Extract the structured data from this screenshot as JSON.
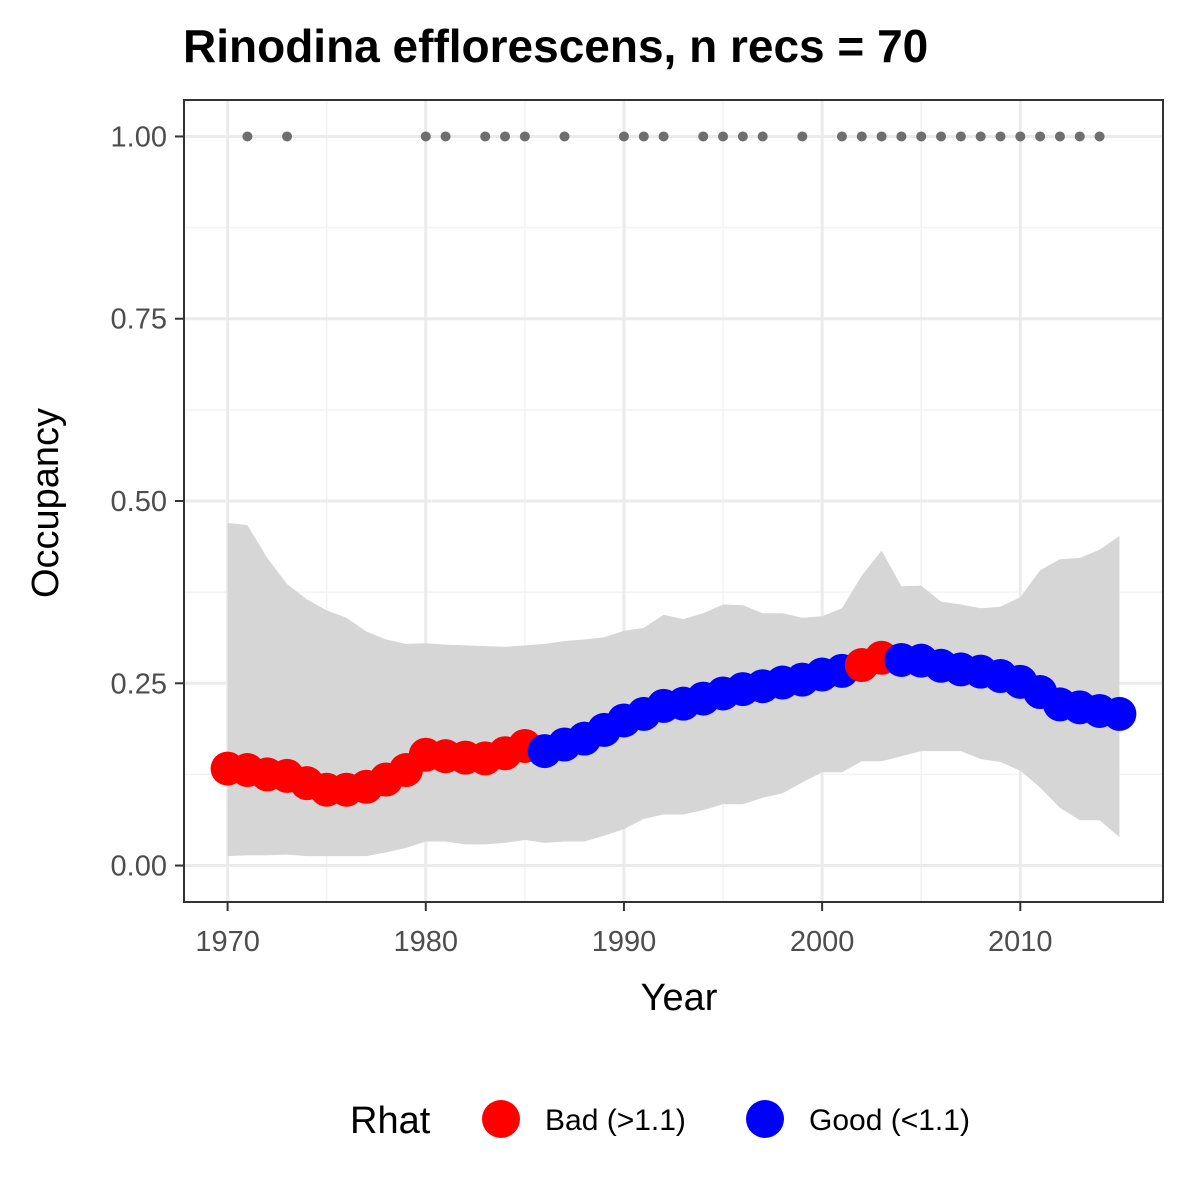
{
  "chart_data": {
    "type": "line",
    "title": "Rinodina efflorescens, n recs = 70",
    "xlabel": "Year",
    "ylabel": "Occupancy",
    "xlim": [
      1967.8,
      2017.2
    ],
    "ylim": [
      -0.05,
      1.05
    ],
    "x_ticks": [
      1970,
      1980,
      1990,
      2000,
      2010
    ],
    "y_ticks": [
      0.0,
      0.25,
      0.5,
      0.75,
      1.0
    ],
    "y_tick_labels": [
      "0.00",
      "0.25",
      "0.50",
      "0.75",
      "1.00"
    ],
    "grid": true,
    "legend": {
      "title": "Rhat",
      "position": "bottom",
      "entries": [
        {
          "label": "Bad (>1.1)",
          "color": "#ff0000"
        },
        {
          "label": "Good (<1.1)",
          "color": "#0000ff"
        }
      ]
    },
    "series": [
      {
        "name": "Occupancy",
        "years": [
          1970,
          1971,
          1972,
          1973,
          1974,
          1975,
          1976,
          1977,
          1978,
          1979,
          1980,
          1981,
          1982,
          1983,
          1984,
          1985,
          1986,
          1987,
          1988,
          1989,
          1990,
          1991,
          1992,
          1993,
          1994,
          1995,
          1996,
          1997,
          1998,
          1999,
          2000,
          2001,
          2002,
          2003,
          2004,
          2005,
          2006,
          2007,
          2008,
          2009,
          2010,
          2011,
          2012,
          2013,
          2014,
          2015
        ],
        "values": [
          0.133,
          0.131,
          0.125,
          0.123,
          0.113,
          0.104,
          0.104,
          0.108,
          0.118,
          0.131,
          0.152,
          0.15,
          0.148,
          0.147,
          0.154,
          0.164,
          0.157,
          0.166,
          0.174,
          0.186,
          0.199,
          0.208,
          0.219,
          0.222,
          0.229,
          0.236,
          0.242,
          0.246,
          0.251,
          0.255,
          0.262,
          0.267,
          0.275,
          0.285,
          0.282,
          0.281,
          0.274,
          0.269,
          0.266,
          0.26,
          0.252,
          0.238,
          0.221,
          0.217,
          0.212,
          0.208
        ],
        "rhat": [
          "Bad",
          "Bad",
          "Bad",
          "Bad",
          "Bad",
          "Bad",
          "Bad",
          "Bad",
          "Bad",
          "Bad",
          "Bad",
          "Bad",
          "Bad",
          "Bad",
          "Bad",
          "Bad",
          "Good",
          "Good",
          "Good",
          "Good",
          "Good",
          "Good",
          "Good",
          "Good",
          "Good",
          "Good",
          "Good",
          "Good",
          "Good",
          "Good",
          "Good",
          "Good",
          "Bad",
          "Bad",
          "Good",
          "Good",
          "Good",
          "Good",
          "Good",
          "Good",
          "Good",
          "Good",
          "Good",
          "Good",
          "Good",
          "Good"
        ],
        "lower": [
          0.013,
          0.014,
          0.014,
          0.015,
          0.013,
          0.013,
          0.013,
          0.013,
          0.018,
          0.024,
          0.033,
          0.033,
          0.029,
          0.029,
          0.031,
          0.035,
          0.031,
          0.033,
          0.033,
          0.041,
          0.05,
          0.064,
          0.07,
          0.07,
          0.076,
          0.084,
          0.084,
          0.093,
          0.099,
          0.114,
          0.128,
          0.128,
          0.143,
          0.143,
          0.15,
          0.157,
          0.157,
          0.157,
          0.146,
          0.142,
          0.13,
          0.107,
          0.079,
          0.062,
          0.062,
          0.039
        ],
        "upper": [
          0.47,
          0.467,
          0.422,
          0.386,
          0.365,
          0.35,
          0.34,
          0.321,
          0.31,
          0.304,
          0.305,
          0.303,
          0.302,
          0.301,
          0.3,
          0.302,
          0.304,
          0.308,
          0.31,
          0.313,
          0.322,
          0.326,
          0.344,
          0.338,
          0.346,
          0.358,
          0.357,
          0.346,
          0.346,
          0.34,
          0.342,
          0.353,
          0.398,
          0.432,
          0.383,
          0.384,
          0.362,
          0.358,
          0.353,
          0.355,
          0.368,
          0.405,
          0.42,
          0.422,
          0.433,
          0.452
        ]
      }
    ],
    "records": {
      "years": [
        1971,
        1973,
        1980,
        1981,
        1983,
        1984,
        1985,
        1987,
        1990,
        1991,
        1992,
        1994,
        1995,
        1996,
        1997,
        1999,
        2001,
        2002,
        2003,
        2004,
        2005,
        2006,
        2007,
        2008,
        2009,
        2010,
        2011,
        2012,
        2013,
        2014
      ],
      "value": 1.0,
      "color": "#6e6e6e"
    },
    "band_color": "#d6d6d6",
    "point_colors": {
      "Bad": "#ff0000",
      "Good": "#0000ff"
    }
  }
}
